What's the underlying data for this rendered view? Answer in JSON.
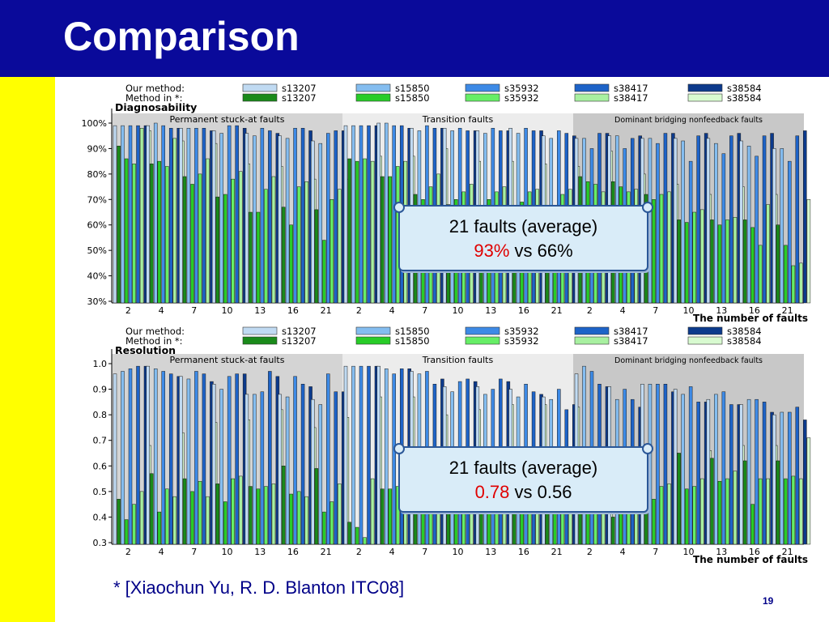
{
  "slide": {
    "title": "Comparison",
    "citation": "* [Xiaochun Yu, R. D. Blanton ITC08]",
    "slide_number": "19"
  },
  "colors": {
    "title_bar": "#0a0a9a",
    "side_bar": "#ffff00",
    "ours": [
      "#c0daf2",
      "#84bdf0",
      "#3d8ae6",
      "#1d63c8",
      "#0c3a8c"
    ],
    "theirs": [
      "#1a8a1a",
      "#28cc28",
      "#66ee66",
      "#a8f0a0",
      "#d8fad0"
    ],
    "section_shade": [
      "#d4d4d4",
      "#ececec",
      "#c8c8c8"
    ],
    "highlight": "#e00000"
  },
  "callouts": [
    {
      "line1": "21 faults (average)",
      "highlight": "93%",
      "rest": " vs 66%"
    },
    {
      "line1": "21 faults (average)",
      "highlight": "0.78",
      "rest": " vs 0.56"
    }
  ],
  "chart_data": [
    {
      "type": "bar",
      "panel_title": "Diagnosability",
      "legend": {
        "row1_label": "Our method:",
        "row2_label": "Method in *:",
        "circuits": [
          "s13207",
          "s15850",
          "s35932",
          "s38417",
          "s38584"
        ]
      },
      "sections": [
        "Permanent stuck-at faults",
        "Transition faults",
        "Dominant bridging nonfeedback faults"
      ],
      "categories": [
        "2",
        "4",
        "7",
        "10",
        "13",
        "16",
        "21"
      ],
      "xlabel": "The number of faults",
      "ylim": [
        30,
        100
      ],
      "yticks": [
        "30%",
        "40%",
        "50%",
        "60%",
        "70%",
        "80%",
        "90%",
        "100%"
      ],
      "yticks_values": [
        30,
        40,
        50,
        60,
        70,
        80,
        90,
        100
      ],
      "ours": [
        [
          [
            99,
            99,
            99,
            99,
            99
          ],
          [
            99,
            100,
            99,
            98,
            98
          ],
          [
            98,
            98,
            98,
            98,
            97
          ],
          [
            97,
            96,
            99,
            99,
            98
          ],
          [
            96,
            95,
            98,
            97,
            96
          ],
          [
            95,
            94,
            98,
            98,
            97
          ],
          [
            93,
            92,
            96,
            97,
            97
          ]
        ],
        [
          [
            99,
            99,
            99,
            99,
            99
          ],
          [
            100,
            100,
            99,
            99,
            98
          ],
          [
            98,
            97,
            99,
            98,
            98
          ],
          [
            98,
            97,
            98,
            97,
            97
          ],
          [
            97,
            96,
            98,
            97,
            97
          ],
          [
            98,
            96,
            98,
            97,
            97
          ],
          [
            95,
            94,
            97,
            96,
            95
          ]
        ],
        [
          [
            94,
            94,
            90,
            96,
            96
          ],
          [
            95,
            95,
            90,
            94,
            95
          ],
          [
            94,
            94,
            92,
            96,
            96
          ],
          [
            94,
            93,
            85,
            95,
            96
          ],
          [
            94,
            92,
            88,
            95,
            96
          ],
          [
            93,
            91,
            87,
            95,
            96
          ],
          [
            90,
            90,
            85,
            95,
            97
          ]
        ]
      ],
      "theirs": [
        [
          [
            91,
            86,
            84,
            98,
            97
          ],
          [
            84,
            85,
            83,
            94,
            93
          ],
          [
            79,
            76,
            80,
            86,
            92
          ],
          [
            71,
            72,
            78,
            81,
            84
          ],
          [
            65,
            65,
            74,
            79,
            83
          ],
          [
            67,
            60,
            75,
            77,
            78
          ],
          [
            66,
            54,
            70,
            74,
            78
          ]
        ],
        [
          [
            86,
            85,
            86,
            85,
            87
          ],
          [
            79,
            79,
            83,
            85,
            87
          ],
          [
            72,
            70,
            75,
            80,
            90
          ],
          [
            68,
            70,
            73,
            76,
            85
          ],
          [
            67,
            70,
            73,
            75,
            85
          ],
          [
            66,
            69,
            73,
            74,
            84
          ],
          [
            62,
            66,
            72,
            74,
            83
          ]
        ],
        [
          [
            79,
            77,
            76,
            73,
            89
          ],
          [
            77,
            75,
            73,
            74,
            80
          ],
          [
            72,
            70,
            72,
            73,
            76
          ],
          [
            62,
            61,
            65,
            66,
            72
          ],
          [
            62,
            60,
            62,
            63,
            75
          ],
          [
            62,
            59,
            52,
            68,
            72
          ],
          [
            60,
            52,
            44,
            45,
            70
          ]
        ]
      ]
    },
    {
      "type": "bar",
      "panel_title": "Resolution",
      "legend": {
        "row1_label": "Our method:",
        "row2_label": "Method in *:",
        "circuits": [
          "s13207",
          "s15850",
          "s35932",
          "s38417",
          "s38584"
        ]
      },
      "sections": [
        "Permanent stuck-at faults",
        "Transition faults",
        "Dominant bridging nonfeedback faults"
      ],
      "categories": [
        "2",
        "4",
        "7",
        "10",
        "13",
        "16",
        "21"
      ],
      "xlabel": "The number of faults",
      "ylim": [
        0.3,
        1.0
      ],
      "yticks": [
        "0.3",
        "0.4",
        "0.5",
        "0.6",
        "0.7",
        "0.8",
        "0.9",
        "1.0"
      ],
      "yticks_values": [
        0.3,
        0.4,
        0.5,
        0.6,
        0.7,
        0.8,
        0.9,
        1.0
      ],
      "ours": [
        [
          [
            0.96,
            0.97,
            0.98,
            0.99,
            0.99
          ],
          [
            0.99,
            0.98,
            0.97,
            0.96,
            0.95
          ],
          [
            0.95,
            0.94,
            0.97,
            0.96,
            0.93
          ],
          [
            0.92,
            0.9,
            0.95,
            0.96,
            0.96
          ],
          [
            0.88,
            0.88,
            0.89,
            0.97,
            0.95
          ],
          [
            0.88,
            0.87,
            0.95,
            0.92,
            0.91
          ],
          [
            0.86,
            0.84,
            0.96,
            0.89,
            0.89
          ]
        ],
        [
          [
            0.99,
            0.99,
            0.99,
            0.99,
            0.99
          ],
          [
            0.99,
            0.98,
            0.96,
            0.98,
            0.98
          ],
          [
            0.97,
            0.96,
            0.97,
            0.92,
            0.94
          ],
          [
            0.91,
            0.89,
            0.93,
            0.94,
            0.93
          ],
          [
            0.91,
            0.88,
            0.9,
            0.94,
            0.93
          ],
          [
            0.9,
            0.87,
            0.92,
            0.89,
            0.88
          ],
          [
            0.87,
            0.86,
            0.9,
            0.82,
            0.84
          ]
        ],
        [
          [
            0.96,
            0.99,
            0.97,
            0.92,
            0.91
          ],
          [
            0.91,
            0.86,
            0.9,
            0.86,
            0.83
          ],
          [
            0.92,
            0.92,
            0.92,
            0.92,
            0.89
          ],
          [
            0.9,
            0.88,
            0.91,
            0.85,
            0.85
          ],
          [
            0.86,
            0.88,
            0.89,
            0.84,
            0.84
          ],
          [
            0.84,
            0.86,
            0.86,
            0.85,
            0.81
          ],
          [
            0.8,
            0.81,
            0.81,
            0.83,
            0.78
          ]
        ]
      ],
      "theirs": [
        [
          [
            0.47,
            0.39,
            0.45,
            0.5,
            0.68
          ],
          [
            0.57,
            0.42,
            0.51,
            0.48,
            0.73
          ],
          [
            0.55,
            0.5,
            0.54,
            0.48,
            0.77
          ],
          [
            0.53,
            0.46,
            0.55,
            0.56,
            0.78
          ],
          [
            0.52,
            0.51,
            0.52,
            0.53,
            0.82
          ],
          [
            0.6,
            0.49,
            0.5,
            0.48,
            0.75
          ],
          [
            0.59,
            0.42,
            0.46,
            0.53,
            0.79
          ]
        ],
        [
          [
            0.38,
            0.36,
            0.32,
            0.55,
            0.87
          ],
          [
            0.51,
            0.51,
            0.52,
            0.55,
            0.87
          ],
          [
            0.56,
            0.48,
            0.57,
            0.58,
            0.8
          ],
          [
            0.6,
            0.5,
            0.56,
            0.59,
            0.82
          ],
          [
            0.59,
            0.5,
            0.58,
            0.59,
            0.84
          ],
          [
            0.55,
            0.47,
            0.56,
            0.58,
            0.84
          ],
          [
            0.54,
            0.45,
            0.54,
            0.57,
            0.83
          ]
        ],
        [
          [
            0.45,
            0.42,
            0.5,
            0.51,
            0.62
          ],
          [
            0.4,
            0.44,
            0.47,
            0.53,
            0.66
          ],
          [
            0.55,
            0.47,
            0.52,
            0.53,
            0.65
          ],
          [
            0.65,
            0.51,
            0.52,
            0.55,
            0.66
          ],
          [
            0.63,
            0.54,
            0.55,
            0.58,
            0.68
          ],
          [
            0.62,
            0.45,
            0.55,
            0.55,
            0.68
          ],
          [
            0.62,
            0.55,
            0.56,
            0.55,
            0.71
          ]
        ]
      ]
    }
  ]
}
